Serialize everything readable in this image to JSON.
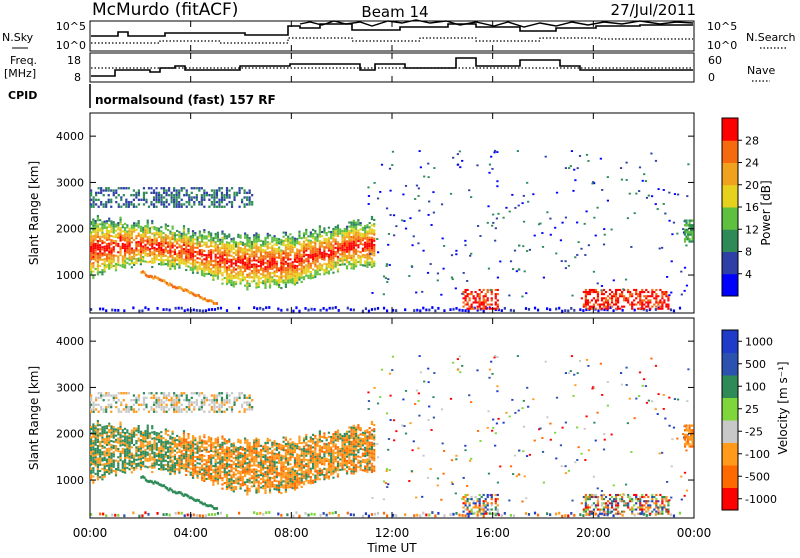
{
  "header": {
    "station": "McMurdo (fitACF)",
    "beam": "Beam 14",
    "date": "27/Jul/2011"
  },
  "top_panels": {
    "nsky_label": "N.Sky",
    "nsky_ticks": [
      "10^5",
      "10^0"
    ],
    "nsearch_label": "N.Search",
    "nsearch_ticks": [
      "10^5",
      "10^0"
    ],
    "freq_label_1": "Freq.",
    "freq_label_2": "[MHz]",
    "freq_ticks": [
      "18",
      "8"
    ],
    "nave_label": "Nave",
    "nave_ticks": [
      "60",
      "0"
    ],
    "cpid_label": "CPID",
    "cpid_text": "normalsound (fast) 157 RF"
  },
  "x_axis": {
    "ticks": [
      "00:00",
      "04:00",
      "08:00",
      "12:00",
      "16:00",
      "20:00",
      "00:00"
    ],
    "label": "Time UT"
  },
  "colors": {
    "power_scale": [
      "#0000ff",
      "#2e3fa5",
      "#2e8b57",
      "#5fbf3f",
      "#e6d21e",
      "#f0a21e",
      "#f56a0f",
      "#ff0000"
    ],
    "velocity_scale": [
      "#ff0000",
      "#ff6a00",
      "#ff9a1a",
      "#c8c8c8",
      "#7ed63a",
      "#2e8b57",
      "#2c52b0",
      "#1e3cc8"
    ]
  },
  "chart_data": [
    {
      "type": "heatmap",
      "panel": "power",
      "ylabel": "Slant Range [km]",
      "y_ticks": [
        "1000",
        "2000",
        "3000",
        "4000"
      ],
      "ylim": [
        180,
        4500
      ],
      "xlim_hours": [
        0,
        24
      ],
      "colorbar_label": "Power [dB]",
      "colorbar_ticks": [
        "4",
        "8",
        "12",
        "16",
        "20",
        "24",
        "28"
      ],
      "clim": [
        0,
        32
      ]
    },
    {
      "type": "heatmap",
      "panel": "velocity",
      "ylabel": "Slant Range [km]",
      "y_ticks": [
        "1000",
        "2000",
        "3000",
        "4000"
      ],
      "ylim": [
        180,
        4500
      ],
      "xlim_hours": [
        0,
        24
      ],
      "colorbar_label": "Velocity [m s⁻¹]",
      "colorbar_ticks": [
        "-1000",
        "-500",
        "-100",
        "-25",
        "25",
        "100",
        "500",
        "1000"
      ]
    }
  ]
}
